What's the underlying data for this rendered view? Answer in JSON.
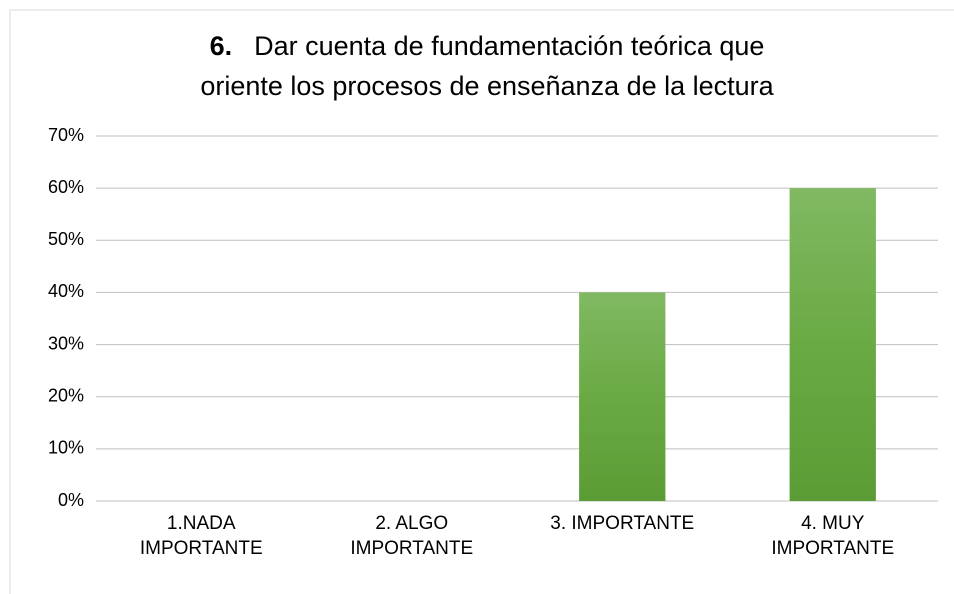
{
  "chart_data": {
    "type": "bar",
    "title_number": "6.",
    "title": [
      "Dar cuenta de fundamentación teórica que",
      "oriente los procesos de enseñanza de la  lectura"
    ],
    "categories": [
      [
        "1.NADA",
        "IMPORTANTE"
      ],
      [
        "2. ALGO",
        "IMPORTANTE"
      ],
      [
        "3. IMPORTANTE"
      ],
      [
        "4. MUY",
        "IMPORTANTE"
      ]
    ],
    "values": [
      0,
      0,
      40,
      60
    ],
    "color": "#6aaa44",
    "ylim": [
      0,
      70
    ],
    "yticks": [
      {
        "value": 0,
        "label": "0%"
      },
      {
        "value": 10,
        "label": "10%"
      },
      {
        "value": 20,
        "label": "20%"
      },
      {
        "value": 30,
        "label": "30%"
      },
      {
        "value": 40,
        "label": "40%"
      },
      {
        "value": 50,
        "label": "50%"
      },
      {
        "value": 60,
        "label": "60%"
      },
      {
        "value": 70,
        "label": "70%"
      }
    ],
    "grid": true
  }
}
